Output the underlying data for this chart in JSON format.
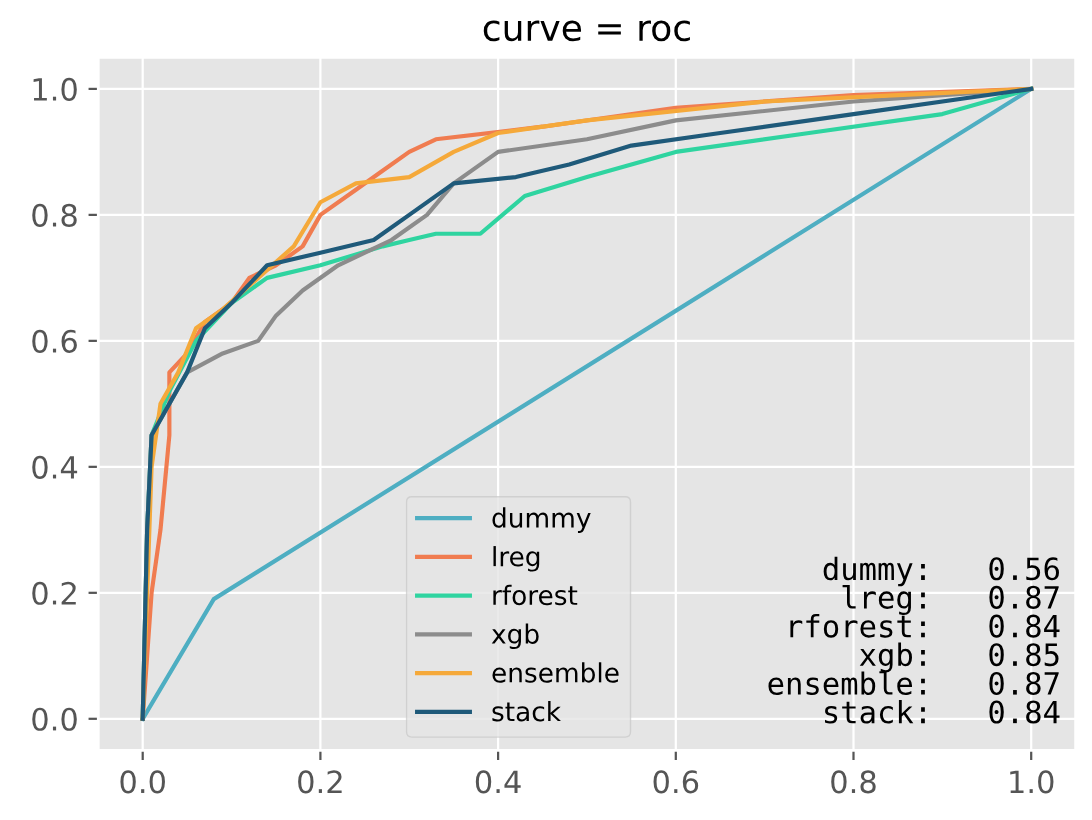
{
  "chart_data": {
    "type": "line",
    "title": "curve = roc",
    "xlim": [
      -0.05,
      1.05
    ],
    "ylim": [
      -0.05,
      1.05
    ],
    "xticks": [
      {
        "value": 0,
        "label": "0.0"
      },
      0.2,
      0.4,
      0.6,
      0.8,
      {
        "value": 1,
        "label": "1.0"
      }
    ],
    "yticks": [
      {
        "value": 0,
        "label": "0.0"
      },
      0.2,
      0.4,
      0.6,
      0.8,
      {
        "value": 1,
        "label": "1.0"
      }
    ],
    "grid": true,
    "legend": "bottom",
    "line_style": "solid",
    "marker": "none",
    "series": [
      {
        "name": "dummy",
        "color": "#4eaec2",
        "x": [
          0,
          0.08,
          1
        ],
        "values": [
          0,
          0.19,
          1
        ]
      },
      {
        "name": "lreg",
        "color": "#f07c50",
        "x": [
          0,
          0.005,
          0.01,
          0.02,
          0.03,
          0.03,
          0.05,
          0.07,
          0.1,
          0.12,
          0.15,
          0.18,
          0.2,
          0.24,
          0.27,
          0.3,
          0.33,
          0.45,
          0.6,
          0.8,
          1
        ],
        "values": [
          0,
          0.1,
          0.2,
          0.3,
          0.45,
          0.55,
          0.58,
          0.63,
          0.66,
          0.7,
          0.72,
          0.75,
          0.8,
          0.84,
          0.87,
          0.9,
          0.92,
          0.94,
          0.97,
          0.99,
          1
        ]
      },
      {
        "name": "rforest",
        "color": "#2fd4a0",
        "x": [
          0,
          0.005,
          0.01,
          0.03,
          0.06,
          0.1,
          0.14,
          0.2,
          0.27,
          0.3,
          0.33,
          0.38,
          0.43,
          0.5,
          0.6,
          0.75,
          0.9,
          1
        ],
        "values": [
          0,
          0.3,
          0.45,
          0.52,
          0.6,
          0.66,
          0.7,
          0.72,
          0.75,
          0.76,
          0.77,
          0.77,
          0.83,
          0.86,
          0.9,
          0.93,
          0.96,
          1
        ]
      },
      {
        "name": "xgb",
        "color": "#8c8c8c",
        "x": [
          0,
          0.005,
          0.01,
          0.03,
          0.05,
          0.09,
          0.13,
          0.15,
          0.18,
          0.22,
          0.28,
          0.32,
          0.35,
          0.4,
          0.5,
          0.6,
          0.8,
          1
        ],
        "values": [
          0,
          0.3,
          0.45,
          0.5,
          0.55,
          0.58,
          0.6,
          0.64,
          0.68,
          0.72,
          0.76,
          0.8,
          0.85,
          0.9,
          0.92,
          0.95,
          0.98,
          1
        ]
      },
      {
        "name": "ensemble",
        "color": "#f5a93a",
        "x": [
          0,
          0.01,
          0.02,
          0.04,
          0.06,
          0.09,
          0.13,
          0.17,
          0.2,
          0.24,
          0.3,
          0.35,
          0.4,
          0.5,
          0.7,
          0.85,
          1
        ],
        "values": [
          0,
          0.4,
          0.5,
          0.55,
          0.62,
          0.65,
          0.7,
          0.75,
          0.82,
          0.85,
          0.86,
          0.9,
          0.93,
          0.95,
          0.98,
          0.99,
          1
        ]
      },
      {
        "name": "stack",
        "color": "#1f5a7a",
        "x": [
          0,
          0.005,
          0.01,
          0.03,
          0.05,
          0.07,
          0.1,
          0.14,
          0.2,
          0.26,
          0.3,
          0.35,
          0.42,
          0.48,
          0.55,
          0.65,
          0.8,
          1
        ],
        "values": [
          0,
          0.3,
          0.45,
          0.5,
          0.55,
          0.62,
          0.66,
          0.72,
          0.74,
          0.76,
          0.8,
          0.85,
          0.86,
          0.88,
          0.91,
          0.93,
          0.96,
          1
        ]
      }
    ],
    "annotations": [
      "dummy:   0.56\nlreg:   0.87\nrforest:   0.84\nxgb:   0.85\nensemble:   0.87\nstack:   0.84"
    ]
  }
}
